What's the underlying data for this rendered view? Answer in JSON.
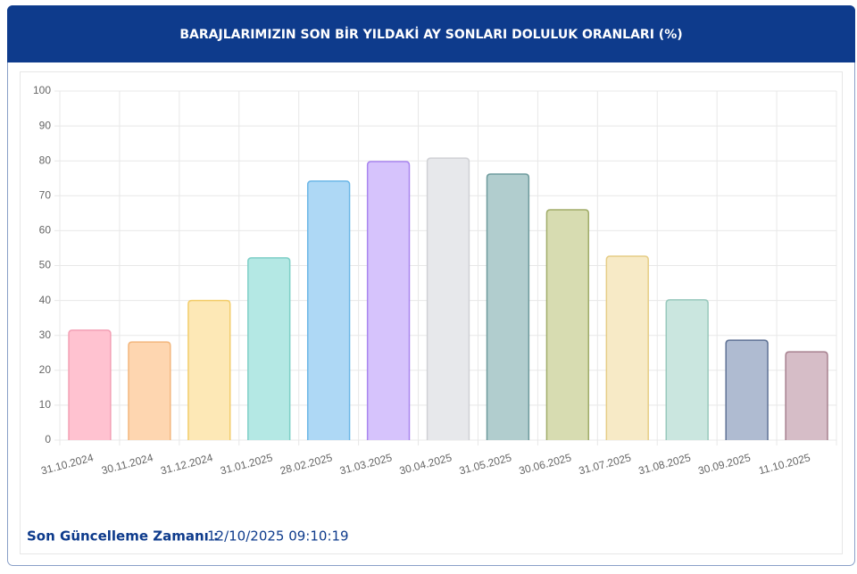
{
  "chart_data": {
    "type": "bar",
    "title": "BARAJLARIMIZIN SON BİR YILDAKİ AY SONLARI DOLULUK ORANLARI (%)",
    "categories": [
      "31.10.2024",
      "30.11.2024",
      "31.12.2024",
      "31.01.2025",
      "28.02.2025",
      "31.03.2025",
      "30.04.2025",
      "31.05.2025",
      "30.06.2025",
      "31.07.2025",
      "31.08.2025",
      "30.09.2025",
      "11.10.2025"
    ],
    "values": [
      31.5,
      28.1,
      40,
      52.2,
      74.2,
      79.8,
      80.8,
      76.2,
      66,
      52.7,
      40.2,
      28.6,
      25.3
    ],
    "colors": [
      "#ffc2d0",
      "#fed6b0",
      "#fde8b6",
      "#b4e8e4",
      "#aed8f5",
      "#d6c3fc",
      "#e7e8eb",
      "#b1cdce",
      "#d7dcb1",
      "#f7eac6",
      "#cae6df",
      "#afbbd1",
      "#d6bdc7"
    ],
    "border_colors": [
      "#f3a0b5",
      "#f3b77d",
      "#f3cd6b",
      "#7ecfc7",
      "#6cb7e7",
      "#a985ef",
      "#d0d1d5",
      "#6e9b9d",
      "#a1ac69",
      "#e6cd86",
      "#98c8bc",
      "#5f7295",
      "#a7818f"
    ],
    "ylim": [
      0,
      100
    ],
    "yticks": [
      0,
      10,
      20,
      30,
      40,
      50,
      60,
      70,
      80,
      90,
      100
    ],
    "grid": true
  },
  "footer": {
    "label": "Son Güncelleme Zamanı :",
    "value": "12/10/2025 09:10:19"
  }
}
